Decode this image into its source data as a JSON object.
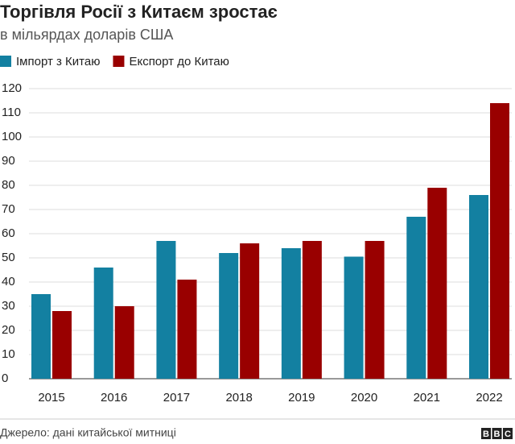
{
  "chart_data": {
    "type": "bar",
    "title": "Торгівля Росії з Китаєм зростає",
    "subtitle": "в мільярдах доларів США",
    "categories": [
      "2015",
      "2016",
      "2017",
      "2018",
      "2019",
      "2020",
      "2021",
      "2022"
    ],
    "series": [
      {
        "name": "Імпорт з Китаю",
        "color": "#1380a1",
        "values": [
          35,
          46,
          57,
          52,
          54,
          50.5,
          67,
          76
        ]
      },
      {
        "name": "Експорт до Китаю",
        "color": "#990000",
        "values": [
          28,
          30,
          41,
          56,
          57,
          57,
          79,
          114
        ]
      }
    ],
    "ylim": [
      0,
      120
    ],
    "yticks": [
      0,
      10,
      20,
      30,
      40,
      50,
      60,
      70,
      80,
      90,
      100,
      110,
      120
    ],
    "grid": true,
    "source": "Джерело: дані китайської митниці",
    "logo": [
      "B",
      "B",
      "C"
    ]
  }
}
